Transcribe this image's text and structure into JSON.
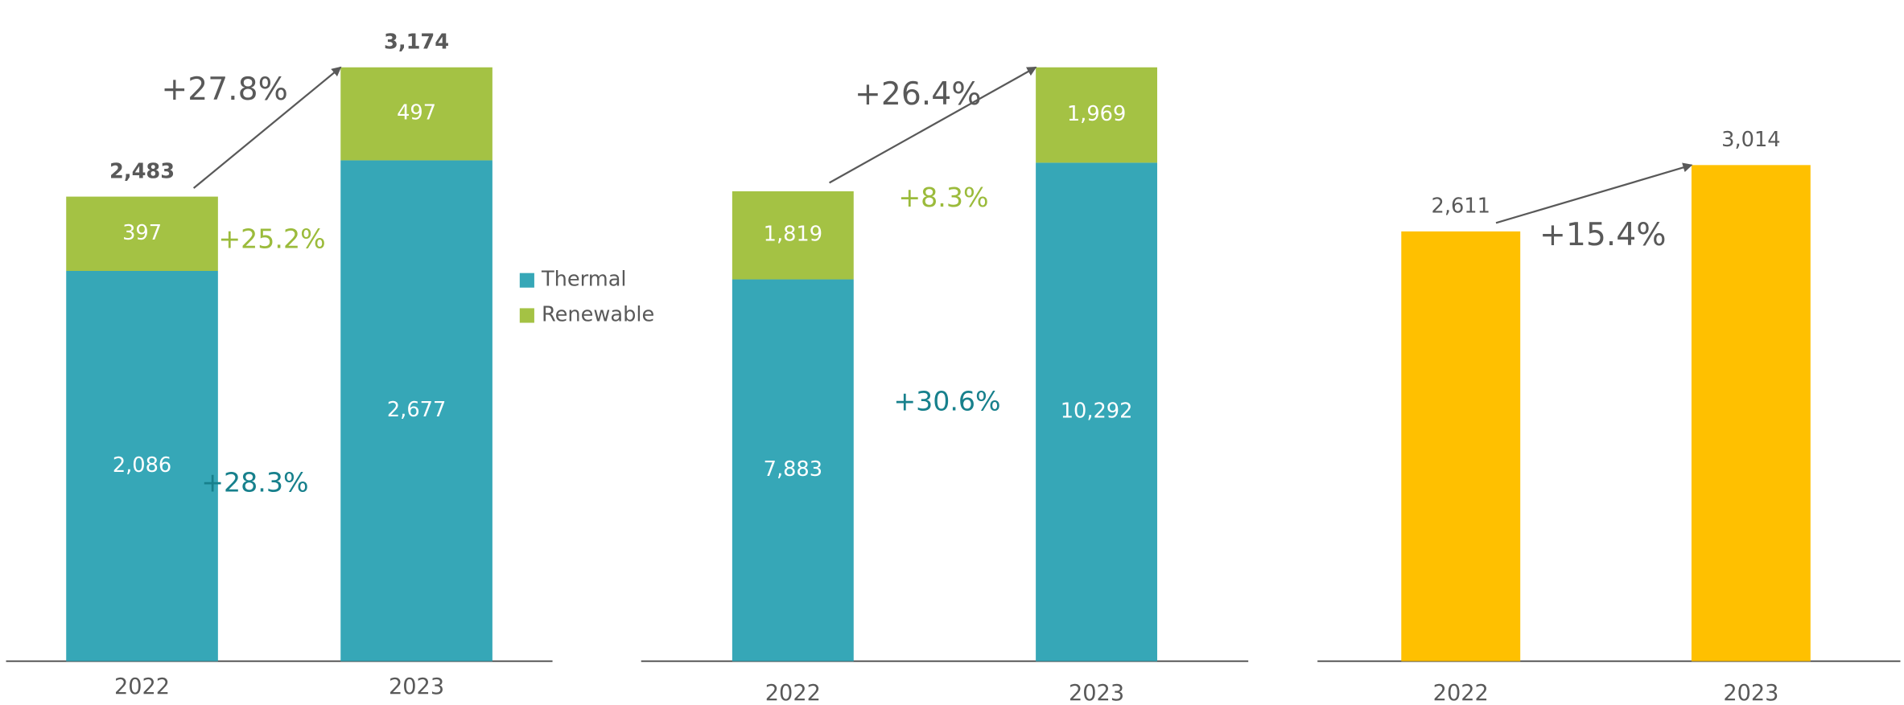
{
  "chart_data": [
    {
      "type": "stacked_bar",
      "categories": [
        "2022",
        "2023"
      ],
      "series": [
        {
          "name": "Thermal",
          "color": "#36a7b7",
          "values": [
            2086,
            2677
          ],
          "value_labels": [
            "2,086",
            "2,677"
          ]
        },
        {
          "name": "Renewable",
          "color": "#a4c244",
          "values": [
            397,
            497
          ],
          "value_labels": [
            "397",
            "497"
          ]
        }
      ],
      "totals": [
        2483,
        3174
      ],
      "total_labels": [
        "2,483",
        "3,174"
      ],
      "legend": true,
      "annotations": [
        {
          "text": "+27.8%",
          "color": "#595959"
        },
        {
          "text": "+25.2%",
          "color": "#9bbb3b"
        },
        {
          "text": "+28.3%",
          "color": "#17808c"
        }
      ]
    },
    {
      "type": "stacked_bar",
      "categories": [
        "2022",
        "2023"
      ],
      "series": [
        {
          "name": "Thermal",
          "color": "#36a7b7",
          "values": [
            7883,
            10292
          ],
          "value_labels": [
            "7,883",
            "10,292"
          ]
        },
        {
          "name": "Renewable",
          "color": "#a4c244",
          "values": [
            1819,
            1969
          ],
          "value_labels": [
            "1,819",
            "1,969"
          ]
        }
      ],
      "legend": false,
      "annotations": [
        {
          "text": "+26.4%",
          "color": "#595959"
        },
        {
          "text": "+8.3%",
          "color": "#9bbb3b"
        },
        {
          "text": "+30.6%",
          "color": "#17808c"
        }
      ]
    },
    {
      "type": "bar",
      "categories": [
        "2022",
        "2023"
      ],
      "color": "#ffc000",
      "values": [
        2611,
        3014
      ],
      "value_labels": [
        "2,611",
        "3,014"
      ],
      "annotations": [
        {
          "text": "+15.4%",
          "color": "#595959"
        }
      ]
    }
  ]
}
